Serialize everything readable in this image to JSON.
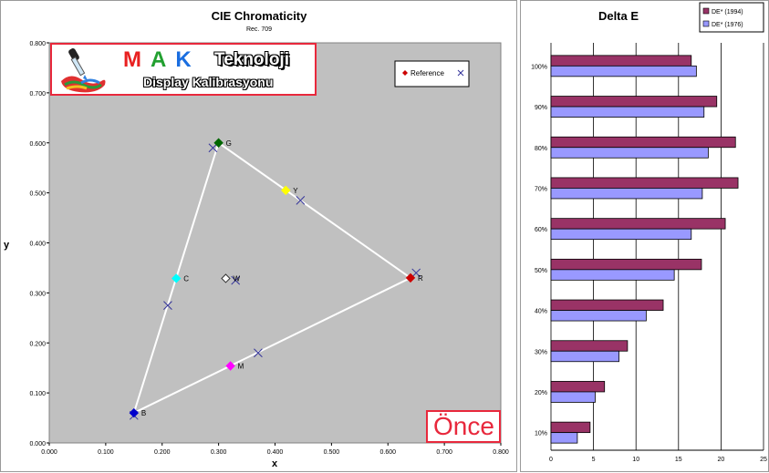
{
  "chart_data": [
    {
      "type": "scatter",
      "title": "CIE Chromaticity",
      "subtitle": "Rec. 709",
      "xlabel": "x",
      "ylabel": "y",
      "xlim": [
        0,
        0.8
      ],
      "ylim": [
        0,
        0.8
      ],
      "x_ticks": [
        "0.000",
        "0.100",
        "0.200",
        "0.300",
        "0.400",
        "0.500",
        "0.600",
        "0.700",
        "0.800"
      ],
      "y_ticks": [
        "0.000",
        "0.100",
        "0.200",
        "0.300",
        "0.400",
        "0.500",
        "0.600",
        "0.700",
        "0.800"
      ],
      "grid": false,
      "legend": {
        "position": "top-right",
        "entries": [
          "Reference"
        ]
      },
      "reference": [
        {
          "label": "R",
          "x": 0.64,
          "y": 0.33,
          "color": "#cc0000"
        },
        {
          "label": "G",
          "x": 0.3,
          "y": 0.6,
          "color": "#006600"
        },
        {
          "label": "B",
          "x": 0.15,
          "y": 0.06,
          "color": "#0000cc"
        },
        {
          "label": "C",
          "x": 0.225,
          "y": 0.329,
          "color": "#00ffff"
        },
        {
          "label": "M",
          "x": 0.321,
          "y": 0.154,
          "color": "#ff00ff"
        },
        {
          "label": "Y",
          "x": 0.419,
          "y": 0.505,
          "color": "#ffff00"
        },
        {
          "label": "W",
          "x": 0.3127,
          "y": 0.329,
          "color": "#ffffff"
        }
      ],
      "measured": [
        {
          "x": 0.65,
          "y": 0.34
        },
        {
          "x": 0.29,
          "y": 0.59
        },
        {
          "x": 0.15,
          "y": 0.055
        },
        {
          "x": 0.21,
          "y": 0.275
        },
        {
          "x": 0.37,
          "y": 0.18
        },
        {
          "x": 0.445,
          "y": 0.485
        },
        {
          "x": 0.33,
          "y": 0.325
        }
      ],
      "triangle": [
        "R",
        "G",
        "B"
      ]
    },
    {
      "type": "bar",
      "orientation": "horizontal",
      "title": "Delta E",
      "categories": [
        "100%",
        "90%",
        "80%",
        "70%",
        "60%",
        "50%",
        "40%",
        "30%",
        "20%",
        "10%"
      ],
      "series": [
        {
          "name": "DE* (1994)",
          "color": "#993366",
          "values": [
            16.5,
            19.5,
            21.7,
            22.0,
            20.5,
            17.7,
            13.2,
            9.0,
            6.3,
            4.6
          ]
        },
        {
          "name": "DE* (1976)",
          "color": "#9999ff",
          "values": [
            17.1,
            18.0,
            18.5,
            17.8,
            16.5,
            14.5,
            11.2,
            8.0,
            5.2,
            3.1
          ]
        }
      ],
      "xlim": [
        0,
        25
      ],
      "x_ticks": [
        "0",
        "5",
        "10",
        "15",
        "20",
        "25"
      ],
      "grid": true,
      "legend": {
        "position": "top-right"
      }
    }
  ],
  "overlay": {
    "logo_letters": [
      "M",
      "A",
      "K"
    ],
    "logo_word": "Teknoloji",
    "logo_subtitle": "Display Kalibrasyonu",
    "stamp": "Önce"
  },
  "colors": {
    "plot_bg": "#c0c0c0",
    "border_red": "#e8283c"
  }
}
